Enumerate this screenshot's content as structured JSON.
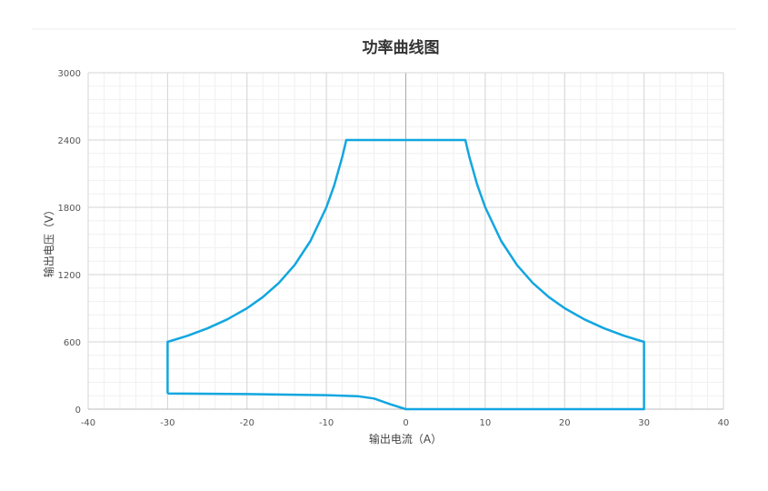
{
  "chart_data": {
    "type": "line",
    "title": "功率曲线图",
    "xlabel": "输出电流（A）",
    "ylabel": "输出电压（V）",
    "xlim": [
      -40,
      40
    ],
    "ylim": [
      0,
      3000
    ],
    "xticks": [
      -40,
      -30,
      -20,
      -10,
      0,
      10,
      20,
      30,
      40
    ],
    "yticks": [
      0,
      600,
      1200,
      1800,
      2400,
      3000
    ],
    "grid": true,
    "legend": "none",
    "color": "#12a6e0",
    "series": [
      {
        "x": [
          -30,
          -20,
          -10,
          -6,
          -4,
          -2,
          0,
          30,
          30,
          27.5,
          25,
          22.5,
          20,
          18,
          16,
          14,
          12,
          10,
          9,
          8,
          7.5,
          -7.5,
          -8,
          -9,
          -10,
          -12,
          -14,
          -16,
          -18,
          -20,
          -22.5,
          -25,
          -27.5,
          -30,
          -30
        ],
        "y": [
          140,
          135,
          125,
          115,
          95,
          45,
          0,
          0,
          600,
          654.5,
          720,
          800,
          900,
          1000,
          1125,
          1285.7,
          1500,
          1800,
          2000,
          2250,
          2400,
          2400,
          2250,
          2000,
          1800,
          1500,
          1285.7,
          1125,
          1000,
          900,
          800,
          720,
          654.5,
          600,
          140
        ]
      }
    ]
  }
}
